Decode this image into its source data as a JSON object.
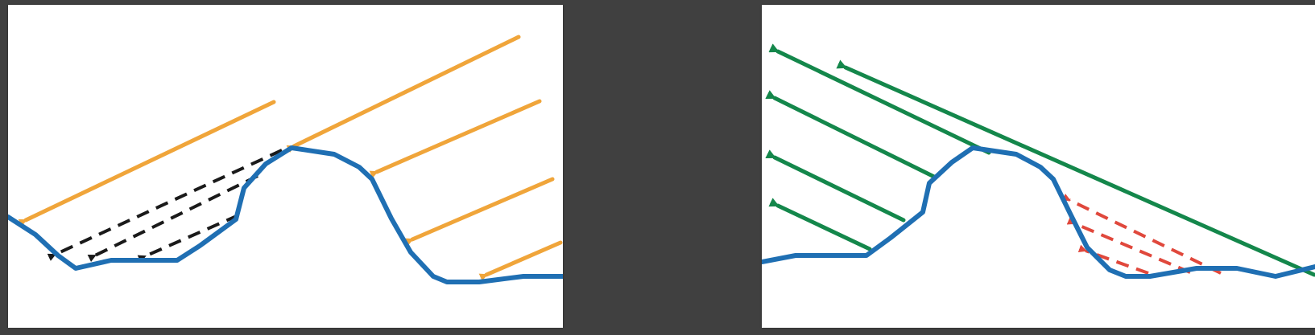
{
  "colors": {
    "background": "#404040",
    "panel": "#ffffff",
    "terrain": "#1f6fb3",
    "incoming_ray": "#f0a53a",
    "shadow_ray": "#1a1a1a",
    "outgoing_ray": "#14874b",
    "blocked_ray": "#e0483c"
  },
  "panels": [
    {
      "id": "incoming-illumination",
      "description_icon": "terrain-shadowing-diagram",
      "rays": [
        "incoming",
        "incoming",
        "incoming",
        "incoming",
        "incoming"
      ],
      "shadow_rays": 3
    },
    {
      "id": "outgoing-visibility",
      "description_icon": "terrain-masking-diagram",
      "rays": [
        "outgoing",
        "outgoing",
        "outgoing",
        "outgoing",
        "outgoing",
        "outgoing"
      ],
      "blocked_rays": 3
    }
  ]
}
